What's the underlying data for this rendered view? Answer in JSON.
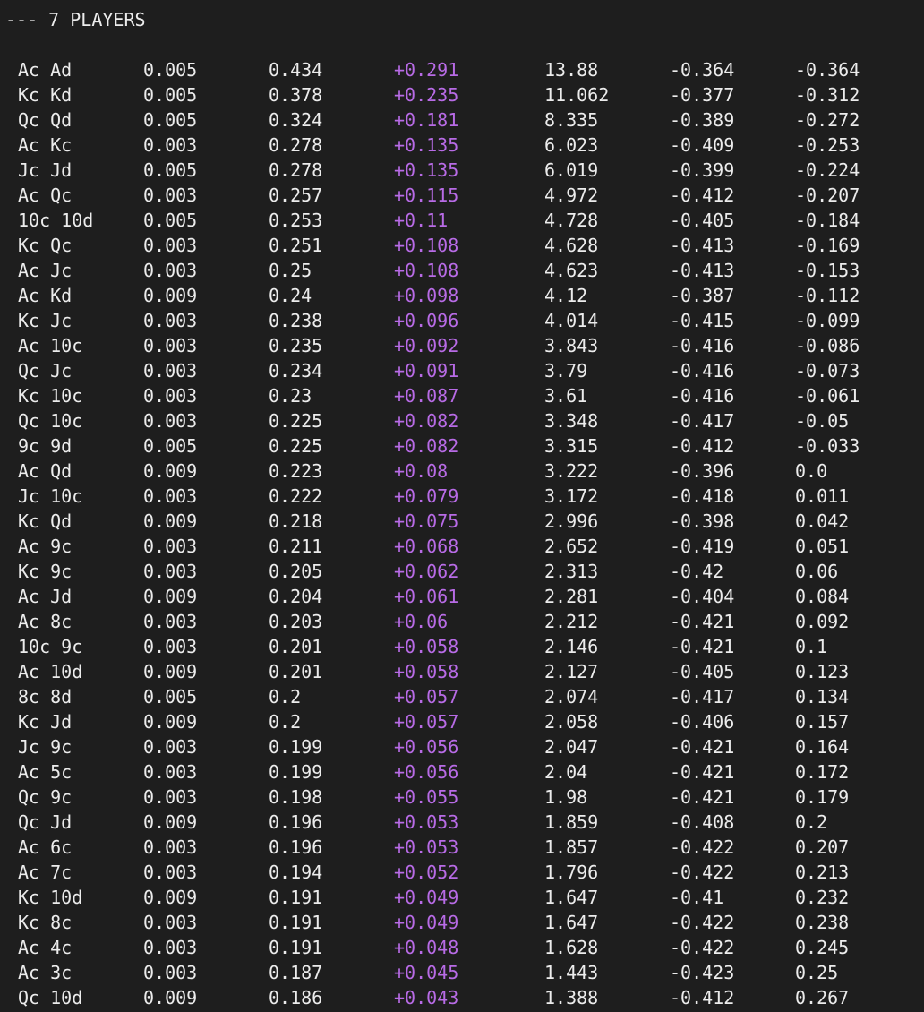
{
  "terminal": {
    "header": "--- 7 PLAYERS",
    "colors": {
      "background": "#1e1e1e",
      "text": "#ececec",
      "delta": "#b86be6"
    },
    "rows": [
      [
        "Ac Ad",
        "0.005",
        "0.434",
        "+0.291",
        "13.88",
        "-0.364",
        "-0.364"
      ],
      [
        "Kc Kd",
        "0.005",
        "0.378",
        "+0.235",
        "11.062",
        "-0.377",
        "-0.312"
      ],
      [
        "Qc Qd",
        "0.005",
        "0.324",
        "+0.181",
        "8.335",
        "-0.389",
        "-0.272"
      ],
      [
        "Ac Kc",
        "0.003",
        "0.278",
        "+0.135",
        "6.023",
        "-0.409",
        "-0.253"
      ],
      [
        "Jc Jd",
        "0.005",
        "0.278",
        "+0.135",
        "6.019",
        "-0.399",
        "-0.224"
      ],
      [
        "Ac Qc",
        "0.003",
        "0.257",
        "+0.115",
        "4.972",
        "-0.412",
        "-0.207"
      ],
      [
        "10c 10d",
        "0.005",
        "0.253",
        "+0.11",
        "4.728",
        "-0.405",
        "-0.184"
      ],
      [
        "Kc Qc",
        "0.003",
        "0.251",
        "+0.108",
        "4.628",
        "-0.413",
        "-0.169"
      ],
      [
        "Ac Jc",
        "0.003",
        "0.25",
        "+0.108",
        "4.623",
        "-0.413",
        "-0.153"
      ],
      [
        "Ac Kd",
        "0.009",
        "0.24",
        "+0.098",
        "4.12",
        "-0.387",
        "-0.112"
      ],
      [
        "Kc Jc",
        "0.003",
        "0.238",
        "+0.096",
        "4.014",
        "-0.415",
        "-0.099"
      ],
      [
        "Ac 10c",
        "0.003",
        "0.235",
        "+0.092",
        "3.843",
        "-0.416",
        "-0.086"
      ],
      [
        "Qc Jc",
        "0.003",
        "0.234",
        "+0.091",
        "3.79",
        "-0.416",
        "-0.073"
      ],
      [
        "Kc 10c",
        "0.003",
        "0.23",
        "+0.087",
        "3.61",
        "-0.416",
        "-0.061"
      ],
      [
        "Qc 10c",
        "0.003",
        "0.225",
        "+0.082",
        "3.348",
        "-0.417",
        "-0.05"
      ],
      [
        "9c 9d",
        "0.005",
        "0.225",
        "+0.082",
        "3.315",
        "-0.412",
        "-0.033"
      ],
      [
        "Ac Qd",
        "0.009",
        "0.223",
        "+0.08",
        "3.222",
        "-0.396",
        "0.0"
      ],
      [
        "Jc 10c",
        "0.003",
        "0.222",
        "+0.079",
        "3.172",
        "-0.418",
        "0.011"
      ],
      [
        "Kc Qd",
        "0.009",
        "0.218",
        "+0.075",
        "2.996",
        "-0.398",
        "0.042"
      ],
      [
        "Ac 9c",
        "0.003",
        "0.211",
        "+0.068",
        "2.652",
        "-0.419",
        "0.051"
      ],
      [
        "Kc 9c",
        "0.003",
        "0.205",
        "+0.062",
        "2.313",
        "-0.42",
        "0.06"
      ],
      [
        "Ac Jd",
        "0.009",
        "0.204",
        "+0.061",
        "2.281",
        "-0.404",
        "0.084"
      ],
      [
        "Ac 8c",
        "0.003",
        "0.203",
        "+0.06",
        "2.212",
        "-0.421",
        "0.092"
      ],
      [
        "10c 9c",
        "0.003",
        "0.201",
        "+0.058",
        "2.146",
        "-0.421",
        "0.1"
      ],
      [
        "Ac 10d",
        "0.009",
        "0.201",
        "+0.058",
        "2.127",
        "-0.405",
        "0.123"
      ],
      [
        "8c 8d",
        "0.005",
        "0.2",
        "+0.057",
        "2.074",
        "-0.417",
        "0.134"
      ],
      [
        "Kc Jd",
        "0.009",
        "0.2",
        "+0.057",
        "2.058",
        "-0.406",
        "0.157"
      ],
      [
        "Jc 9c",
        "0.003",
        "0.199",
        "+0.056",
        "2.047",
        "-0.421",
        "0.164"
      ],
      [
        "Ac 5c",
        "0.003",
        "0.199",
        "+0.056",
        "2.04",
        "-0.421",
        "0.172"
      ],
      [
        "Qc 9c",
        "0.003",
        "0.198",
        "+0.055",
        "1.98",
        "-0.421",
        "0.179"
      ],
      [
        "Qc Jd",
        "0.009",
        "0.196",
        "+0.053",
        "1.859",
        "-0.408",
        "0.2"
      ],
      [
        "Ac 6c",
        "0.003",
        "0.196",
        "+0.053",
        "1.857",
        "-0.422",
        "0.207"
      ],
      [
        "Ac 7c",
        "0.003",
        "0.194",
        "+0.052",
        "1.796",
        "-0.422",
        "0.213"
      ],
      [
        "Kc 10d",
        "0.009",
        "0.191",
        "+0.049",
        "1.647",
        "-0.41",
        "0.232"
      ],
      [
        "Kc 8c",
        "0.003",
        "0.191",
        "+0.049",
        "1.647",
        "-0.422",
        "0.238"
      ],
      [
        "Ac 4c",
        "0.003",
        "0.191",
        "+0.048",
        "1.628",
        "-0.422",
        "0.245"
      ],
      [
        "Ac 3c",
        "0.003",
        "0.187",
        "+0.045",
        "1.443",
        "-0.423",
        "0.25"
      ],
      [
        "Qc 10d",
        "0.009",
        "0.186",
        "+0.043",
        "1.388",
        "-0.412",
        "0.267"
      ]
    ]
  }
}
